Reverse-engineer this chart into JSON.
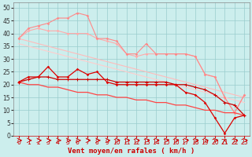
{
  "xlabel": "Vent moyen/en rafales ( km/h )",
  "bg_color": "#cceeed",
  "grid_color": "#99cccc",
  "x": [
    0,
    1,
    2,
    3,
    4,
    5,
    6,
    7,
    8,
    9,
    10,
    11,
    12,
    13,
    14,
    15,
    16,
    17,
    18,
    19,
    20,
    21,
    22,
    23
  ],
  "line_gust_peak": [
    38,
    42,
    43,
    44,
    46,
    46,
    48,
    47,
    38,
    38,
    37,
    32,
    32,
    36,
    32,
    32,
    32,
    32,
    31,
    24,
    23,
    15,
    9,
    16
  ],
  "line_gust_peak_color": "#ff8888",
  "line_gust_avg": [
    38,
    41,
    42,
    41,
    41,
    40,
    40,
    40,
    38,
    37,
    36,
    32,
    31,
    32,
    32,
    32,
    32,
    32,
    31,
    24,
    23,
    15,
    9,
    16
  ],
  "line_gust_avg_color": "#ffaaaa",
  "line_reg_upper": [
    38,
    37,
    36,
    35,
    34,
    33,
    32,
    31,
    30,
    29,
    28,
    27,
    26,
    25,
    24,
    23,
    22,
    21,
    20,
    19,
    18,
    17,
    16,
    15
  ],
  "line_reg_upper_color": "#ffbbbb",
  "line_reg_lower": [
    36,
    35,
    34,
    33,
    32,
    31,
    30,
    29,
    28,
    27,
    26,
    25,
    24,
    23,
    22,
    21,
    20,
    19,
    18,
    17,
    16,
    15,
    14,
    13
  ],
  "line_reg_lower_color": "#ffcccc",
  "line_wind_peak": [
    21,
    23,
    23,
    27,
    23,
    23,
    26,
    24,
    25,
    21,
    20,
    20,
    20,
    20,
    20,
    20,
    20,
    17,
    16,
    13,
    7,
    1,
    7,
    8
  ],
  "line_wind_peak_color": "#dd0000",
  "line_wind_avg": [
    21,
    22,
    23,
    23,
    22,
    22,
    22,
    22,
    22,
    22,
    21,
    21,
    21,
    21,
    21,
    21,
    20,
    20,
    19,
    18,
    16,
    13,
    12,
    8
  ],
  "line_wind_avg_color": "#cc0000",
  "line_reg_wind": [
    21,
    20,
    20,
    19,
    19,
    18,
    17,
    17,
    16,
    16,
    15,
    15,
    14,
    14,
    13,
    13,
    12,
    12,
    11,
    10,
    10,
    9,
    9,
    8
  ],
  "line_reg_wind_color": "#ff4444",
  "wind_arrow_up_idx": [
    21
  ],
  "ylim": [
    0,
    52
  ],
  "yticks": [
    0,
    5,
    10,
    15,
    20,
    25,
    30,
    35,
    40,
    45,
    50
  ],
  "xticks": [
    0,
    1,
    2,
    3,
    4,
    5,
    6,
    7,
    8,
    9,
    10,
    11,
    12,
    13,
    14,
    15,
    16,
    17,
    18,
    19,
    20,
    21,
    22,
    23
  ],
  "xlabel_color": "#cc0000",
  "xlabel_fontsize": 6.5,
  "tick_fontsize": 5.5
}
